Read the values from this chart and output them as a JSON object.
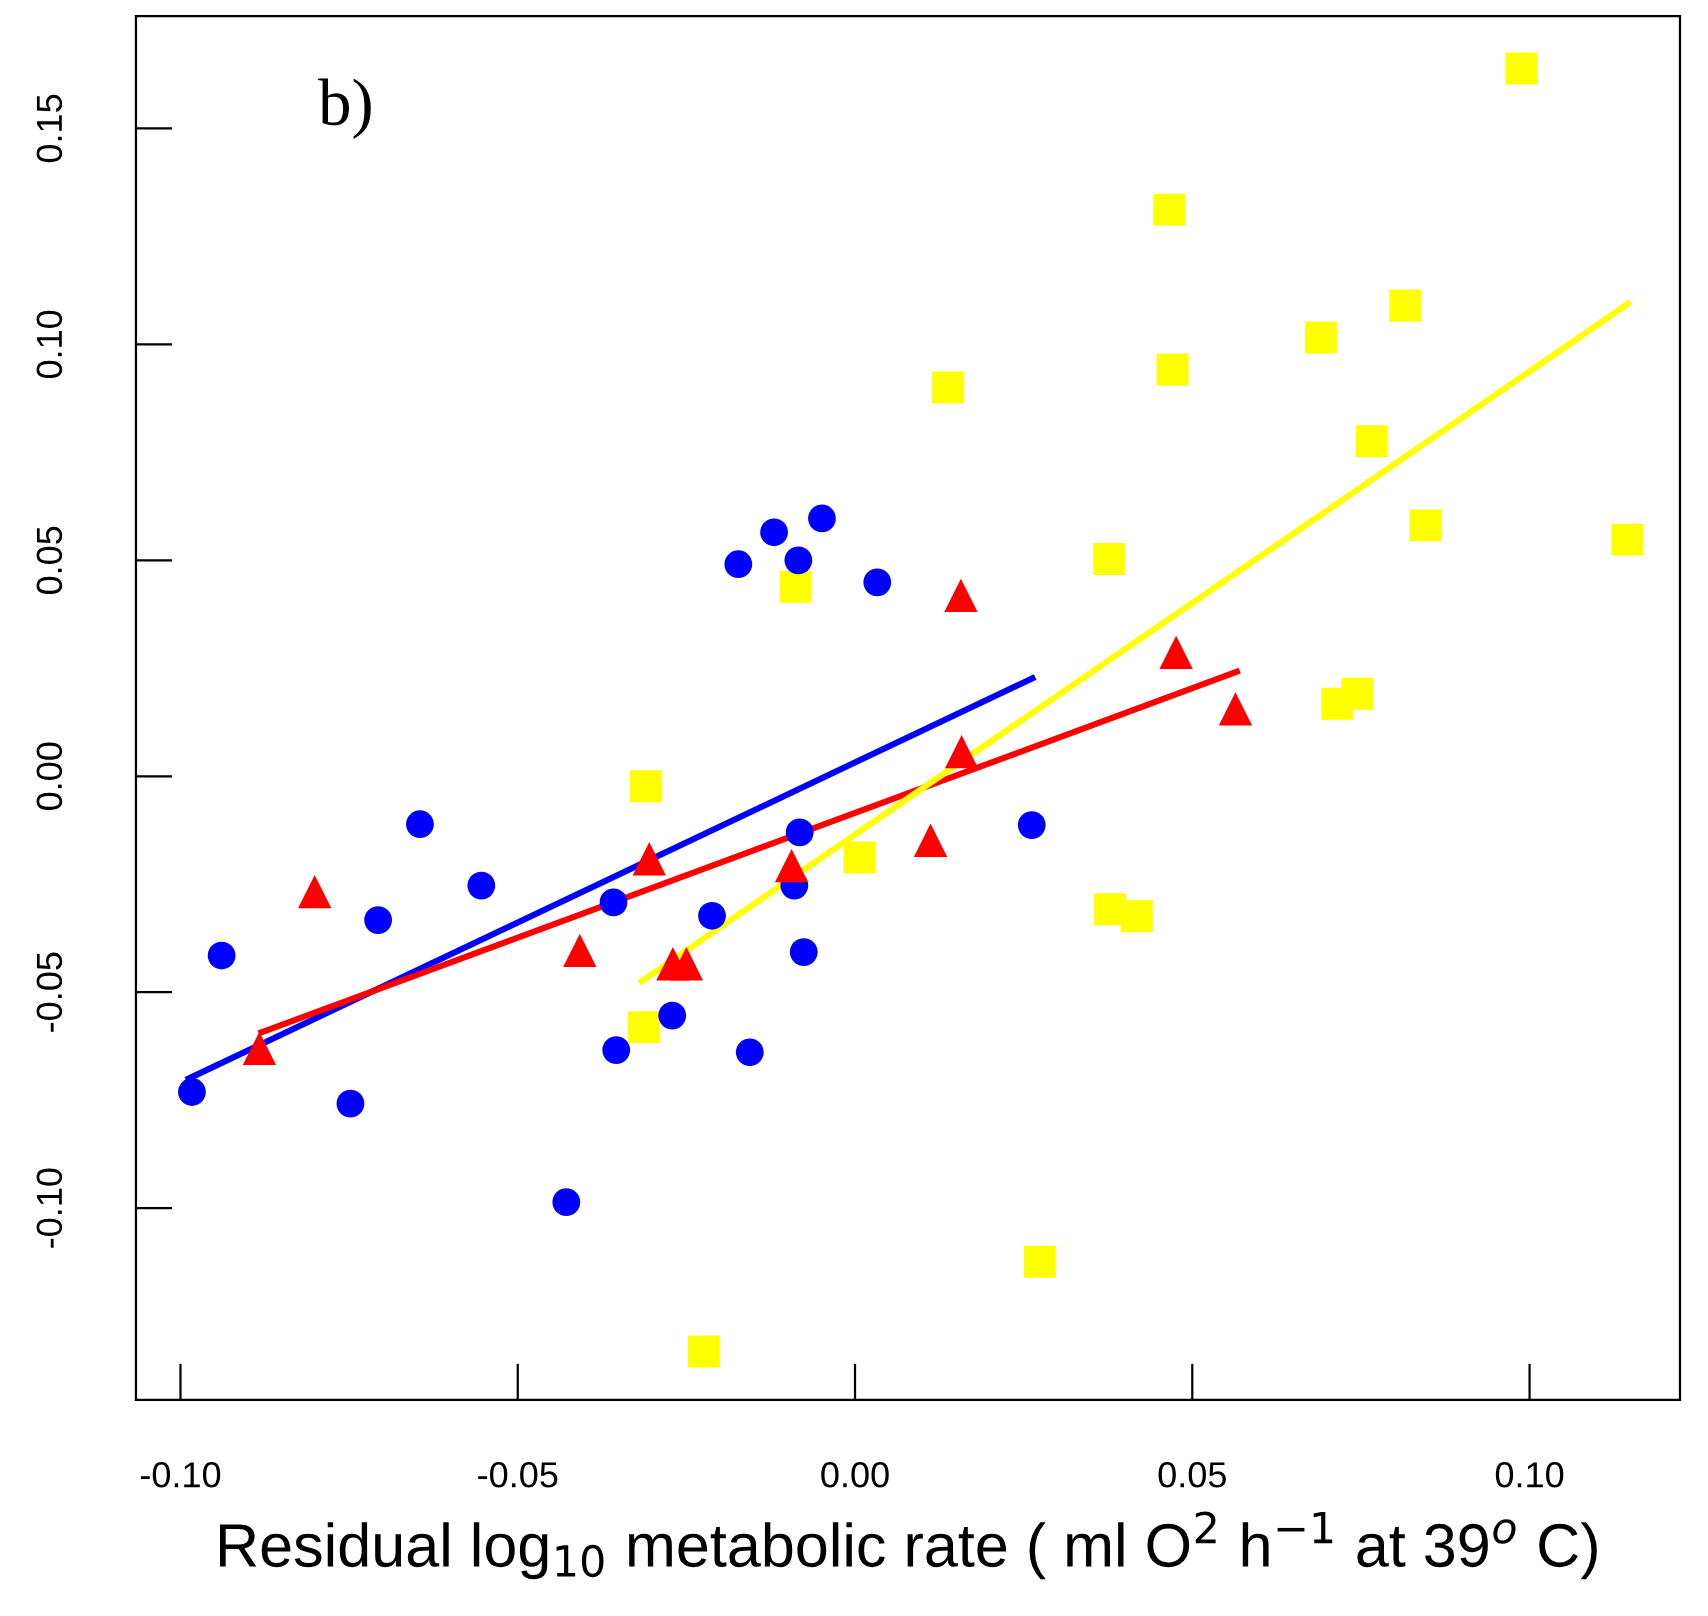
{
  "chart_data": {
    "type": "scatter",
    "title": "b)",
    "xlabel": "Residual log$_{10}$ metabolic rate ( ml O$^{2}$ h$^{−1}$ at 39$^{o}$ C)",
    "xlim": [
      -0.1066,
      0.1223
    ],
    "ylim": [
      -0.1444,
      0.176
    ],
    "xticks": [
      {
        "value": -0.1,
        "label": "-0.10"
      },
      {
        "value": -0.05,
        "label": "-0.05"
      },
      {
        "value": 0,
        "label": "0.00"
      },
      {
        "value": 0.05,
        "label": "0.05"
      },
      {
        "value": 0.1,
        "label": "0.10"
      }
    ],
    "yticks": [
      {
        "value": -0.1,
        "label": "-0.10"
      },
      {
        "value": -0.05,
        "label": "-0.05"
      },
      {
        "value": 0,
        "label": "0.00"
      },
      {
        "value": 0.05,
        "label": "0.05"
      },
      {
        "value": 0.1,
        "label": "0.10"
      },
      {
        "value": 0.15,
        "label": "0.15"
      }
    ],
    "grid": false,
    "series": [
      {
        "type": "line",
        "color": "#0000ff",
        "marker": "none",
        "line_style": "solid",
        "x": [
          -0.0988,
          0.0263
        ],
        "values": [
          -0.07,
          0.0227
        ]
      },
      {
        "type": "line",
        "color": "#ff0000",
        "marker": "none",
        "line_style": "solid",
        "x": [
          -0.088,
          0.0566
        ],
        "values": [
          -0.0593,
          0.0242
        ]
      },
      {
        "type": "line",
        "color": "#ffff00",
        "marker": "none",
        "line_style": "solid",
        "x": [
          -0.0316,
          0.1146
        ],
        "values": [
          -0.0474,
          0.1094
        ]
      },
      {
        "color": "#ffff00",
        "marker": "square",
        "x": [
          0.0988,
          0.0466,
          0.0816,
          0.0691,
          0.0471,
          0.0138,
          0.0766,
          0.0846,
          0.1145,
          0.0377,
          -0.0088,
          -0.031,
          0.0007,
          0.0378,
          0.0418,
          0.0715,
          0.0745,
          -0.0313,
          0.0274,
          -0.0224
        ],
        "values": [
          0.1639,
          0.1312,
          0.109,
          0.1016,
          0.0942,
          0.09,
          0.0776,
          0.0581,
          0.0548,
          0.0503,
          0.0439,
          -0.0023,
          -0.0188,
          -0.0308,
          -0.0324,
          0.0168,
          0.0191,
          -0.0581,
          -0.1124,
          -0.1332
        ]
      },
      {
        "color": "#0000ff",
        "marker": "circle",
        "x": [
          -0.0983,
          -0.0939,
          -0.0748,
          -0.0707,
          -0.0645,
          -0.0554,
          -0.0428,
          -0.0358,
          -0.0354,
          -0.0271,
          -0.0212,
          -0.0173,
          -0.012,
          -0.0084,
          -0.0049,
          0.0033,
          -0.0156,
          -0.0076,
          -0.009,
          -0.0082,
          0.0262
        ],
        "values": [
          -0.0731,
          -0.0415,
          -0.0758,
          -0.0333,
          -0.0111,
          -0.0253,
          -0.0986,
          -0.0292,
          -0.0634,
          -0.0554,
          -0.0323,
          0.0491,
          0.0565,
          0.05,
          0.0597,
          0.0449,
          -0.0639,
          -0.0407,
          -0.0253,
          -0.013,
          -0.0113
        ]
      },
      {
        "color": "#ff0000",
        "marker": "triangle",
        "x": [
          -0.0883,
          -0.0801,
          -0.0408,
          -0.0305,
          -0.027,
          -0.025,
          -0.0094,
          0.0112,
          0.0158,
          0.0157,
          0.0476,
          0.0564
        ],
        "values": [
          -0.063,
          -0.0267,
          -0.0403,
          -0.0191,
          -0.0434,
          -0.0434,
          -0.0207,
          -0.0148,
          0.0057,
          0.0419,
          0.0287,
          0.0156
        ]
      }
    ]
  }
}
